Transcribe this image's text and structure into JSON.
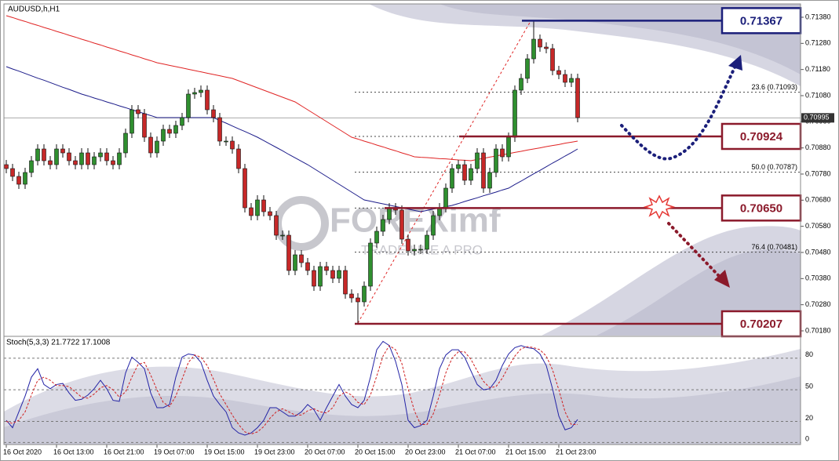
{
  "chart_data": [
    {
      "type": "candlestick",
      "title": "AUDUSD,h,H1",
      "categories": [
        "16 Oct 2020",
        null,
        null,
        null,
        null,
        null,
        null,
        null,
        "16 Oct 13:00",
        null,
        null,
        null,
        null,
        null,
        null,
        null,
        "16 Oct 21:00",
        null,
        null,
        null,
        null,
        null,
        null,
        null,
        "19 Oct 07:00",
        null,
        null,
        null,
        null,
        null,
        null,
        null,
        "19 Oct 15:00",
        null,
        null,
        null,
        null,
        null,
        null,
        null,
        "19 Oct 23:00",
        null,
        null,
        null,
        null,
        null,
        null,
        null,
        "20 Oct 07:00",
        null,
        null,
        null,
        null,
        null,
        null,
        null,
        "20 Oct 15:00",
        null,
        null,
        null,
        null,
        null,
        null,
        null,
        "20 Oct 23:00",
        null,
        null,
        null,
        null,
        null,
        null,
        null,
        "21 Oct 07:00",
        null,
        null,
        null,
        null,
        null,
        null,
        null,
        "21 Oct 15:00",
        null,
        null,
        null,
        null,
        null,
        null,
        null,
        "21 Oct 23:00",
        null,
        null,
        null
      ],
      "open": [
        0.70816,
        0.70801,
        0.70771,
        0.70741,
        0.70786,
        0.70831,
        0.70876,
        0.70831,
        0.70816,
        0.70876,
        0.70861,
        0.70831,
        0.70816,
        0.70861,
        0.70816,
        0.70846,
        0.70861,
        0.70831,
        0.70816,
        0.70861,
        0.70936,
        0.71026,
        0.71011,
        0.70921,
        0.70861,
        0.70906,
        0.70951,
        0.70936,
        0.70966,
        0.70996,
        0.71086,
        0.71092,
        0.71101,
        0.71026,
        0.70996,
        0.70906,
        0.70906,
        0.70876,
        0.70801,
        0.70651,
        0.70621,
        0.70681,
        0.70636,
        0.70621,
        0.70546,
        0.70546,
        0.70411,
        0.70471,
        0.70441,
        0.70411,
        0.70351,
        0.70426,
        0.70411,
        0.70381,
        0.70411,
        0.70321,
        0.70306,
        0.70291,
        0.70351,
        0.70516,
        0.70561,
        0.70606,
        0.70651,
        0.70642,
        0.70531,
        0.70486,
        0.70492,
        0.70492,
        0.70546,
        0.70621,
        0.70651,
        0.70726,
        0.70801,
        0.70816,
        0.70756,
        0.70801,
        0.70861,
        0.70726,
        0.70786,
        0.70876,
        0.70846,
        0.70921,
        0.71101,
        0.71146,
        0.71221,
        0.71296,
        0.71266,
        0.7126,
        0.71176,
        0.71161,
        0.71131,
        0.71146
      ],
      "high": [
        0.70834,
        0.70819,
        0.70789,
        0.70804,
        0.70849,
        0.70894,
        0.70894,
        0.70849,
        0.70894,
        0.70894,
        0.70879,
        0.70849,
        0.70879,
        0.70879,
        0.70864,
        0.70879,
        0.70879,
        0.70849,
        0.70879,
        0.70954,
        0.71044,
        0.71044,
        0.71029,
        0.70939,
        0.70924,
        0.70969,
        0.70969,
        0.70984,
        0.71014,
        0.71104,
        0.7111,
        0.71119,
        0.71119,
        0.71044,
        0.71014,
        0.70924,
        0.70924,
        0.70894,
        0.70819,
        0.70669,
        0.70699,
        0.70699,
        0.70654,
        0.70639,
        0.70564,
        0.70564,
        0.70489,
        0.70489,
        0.70459,
        0.70429,
        0.70444,
        0.70444,
        0.70429,
        0.70429,
        0.70429,
        0.70339,
        0.70324,
        0.70369,
        0.70534,
        0.70579,
        0.70624,
        0.70669,
        0.70669,
        0.7066,
        0.70549,
        0.7051,
        0.7051,
        0.70564,
        0.70639,
        0.70669,
        0.70744,
        0.70819,
        0.70834,
        0.70834,
        0.70819,
        0.70879,
        0.70879,
        0.70804,
        0.70894,
        0.70894,
        0.70939,
        0.71119,
        0.71164,
        0.71239,
        0.71367,
        0.71314,
        0.71284,
        0.71278,
        0.71194,
        0.71179,
        0.71164,
        0.71164
      ],
      "low": [
        0.70783,
        0.70753,
        0.70723,
        0.70723,
        0.70768,
        0.70813,
        0.70813,
        0.70798,
        0.70798,
        0.70843,
        0.70813,
        0.70798,
        0.70798,
        0.70798,
        0.70798,
        0.70828,
        0.70813,
        0.70798,
        0.70798,
        0.70843,
        0.70918,
        0.70993,
        0.70903,
        0.70843,
        0.70843,
        0.70888,
        0.70918,
        0.70918,
        0.70948,
        0.70978,
        0.71068,
        0.71074,
        0.71008,
        0.70978,
        0.70888,
        0.70888,
        0.70858,
        0.70783,
        0.70633,
        0.70603,
        0.70603,
        0.70618,
        0.70603,
        0.70528,
        0.70528,
        0.70393,
        0.70393,
        0.70423,
        0.70393,
        0.70333,
        0.70333,
        0.70393,
        0.70363,
        0.70363,
        0.70303,
        0.70288,
        0.70207,
        0.70273,
        0.70333,
        0.70498,
        0.70543,
        0.70588,
        0.70624,
        0.70513,
        0.70468,
        0.70468,
        0.70474,
        0.70474,
        0.70528,
        0.70603,
        0.70633,
        0.70708,
        0.70783,
        0.70738,
        0.70738,
        0.70783,
        0.70708,
        0.70708,
        0.70768,
        0.70828,
        0.70828,
        0.70903,
        0.71083,
        0.71128,
        0.71203,
        0.71248,
        0.71242,
        0.71158,
        0.71143,
        0.71113,
        0.71113,
        0.70978
      ],
      "close": [
        0.70801,
        0.70771,
        0.70741,
        0.70786,
        0.70831,
        0.70876,
        0.70831,
        0.70816,
        0.70876,
        0.70861,
        0.70831,
        0.70816,
        0.70861,
        0.70816,
        0.70846,
        0.70861,
        0.70831,
        0.70816,
        0.70861,
        0.70936,
        0.71026,
        0.71011,
        0.70921,
        0.70861,
        0.70906,
        0.70951,
        0.70936,
        0.70966,
        0.70996,
        0.71086,
        0.71092,
        0.71101,
        0.71026,
        0.70996,
        0.70906,
        0.70906,
        0.70876,
        0.70801,
        0.70651,
        0.70621,
        0.70681,
        0.70636,
        0.70621,
        0.70546,
        0.70546,
        0.70411,
        0.70471,
        0.70441,
        0.70411,
        0.70351,
        0.70426,
        0.70411,
        0.70381,
        0.70411,
        0.70321,
        0.70306,
        0.70291,
        0.70351,
        0.70516,
        0.70561,
        0.70606,
        0.70651,
        0.70642,
        0.70531,
        0.70486,
        0.70492,
        0.70492,
        0.70546,
        0.70621,
        0.70651,
        0.70726,
        0.70801,
        0.70816,
        0.70756,
        0.70801,
        0.70861,
        0.70726,
        0.70786,
        0.70876,
        0.70846,
        0.70921,
        0.71101,
        0.71146,
        0.71221,
        0.71296,
        0.71266,
        0.7126,
        0.71176,
        0.71161,
        0.71131,
        0.71146,
        0.70996
      ],
      "up_color": "#2f8f2f",
      "down_color": "#c62828",
      "series": [
        {
          "color": "#e02424",
          "values": [
            0.71386,
            0.71379,
            0.71371,
            0.71364,
            0.71356,
            0.71349,
            0.71341,
            0.71334,
            0.71326,
            0.71319,
            0.71311,
            0.71304,
            0.71296,
            0.71289,
            0.71281,
            0.71274,
            0.71266,
            0.71259,
            0.71251,
            0.71244,
            0.71236,
            0.71229,
            0.71221,
            0.71214,
            0.71206,
            0.71201,
            0.71196,
            0.71191,
            0.71186,
            0.71181,
            0.71176,
            0.71171,
            0.71166,
            0.71161,
            0.71156,
            0.71151,
            0.71146,
            0.71137,
            0.71128,
            0.71119,
            0.7111,
            0.71101,
            0.71092,
            0.71083,
            0.71074,
            0.71065,
            0.71056,
            0.71041,
            0.71026,
            0.71011,
            0.70996,
            0.70981,
            0.70966,
            0.70951,
            0.70936,
            0.70921,
            0.70914,
            0.70906,
            0.70899,
            0.70891,
            0.70884,
            0.70876,
            0.70869,
            0.70861,
            0.70854,
            0.70846,
            0.70844,
            0.70843,
            0.70841,
            0.70839,
            0.70838,
            0.70836,
            0.70834,
            0.70833,
            0.70831,
            0.70836,
            0.7084,
            0.70845,
            0.70849,
            0.70854,
            0.70858,
            0.70863,
            0.70867,
            0.70872,
            0.70876,
            0.7088,
            0.70885,
            0.70889,
            0.70893,
            0.70898,
            0.70902,
            0.70906
          ]
        },
        {
          "color": "#1c1c8a",
          "values": [
            0.71191,
            0.71182,
            0.71174,
            0.71165,
            0.71156,
            0.71147,
            0.71139,
            0.7113,
            0.71121,
            0.71112,
            0.71104,
            0.71095,
            0.71086,
            0.71079,
            0.71071,
            0.71064,
            0.71056,
            0.71049,
            0.71041,
            0.71034,
            0.71026,
            0.71019,
            0.71011,
            0.71004,
            0.70996,
            0.70996,
            0.70996,
            0.70996,
            0.70996,
            0.70996,
            0.70996,
            0.70996,
            0.70996,
            0.70996,
            0.70985,
            0.70975,
            0.70964,
            0.70953,
            0.70943,
            0.70932,
            0.70921,
            0.70908,
            0.70895,
            0.70882,
            0.70869,
            0.70855,
            0.70842,
            0.70829,
            0.70816,
            0.70801,
            0.70786,
            0.70771,
            0.70756,
            0.70741,
            0.70726,
            0.70711,
            0.70696,
            0.70681,
            0.70676,
            0.70671,
            0.70666,
            0.70661,
            0.70656,
            0.70651,
            0.70646,
            0.70641,
            0.70636,
            0.70641,
            0.70646,
            0.7065,
            0.70655,
            0.7066,
            0.70667,
            0.70675,
            0.70682,
            0.70689,
            0.70697,
            0.70704,
            0.70711,
            0.70719,
            0.70726,
            0.7074,
            0.70753,
            0.70767,
            0.70781,
            0.70794,
            0.70808,
            0.70822,
            0.70835,
            0.70849,
            0.70862,
            0.70876
          ]
        }
      ],
      "ylim": [
        0.70162,
        0.71431
      ],
      "yticks": [
        {
          "value": 0.7138,
          "label": "0.71380"
        },
        {
          "value": 0.7128,
          "label": "0.71280"
        },
        {
          "value": 0.7118,
          "label": "0.71180"
        },
        {
          "value": 0.7108,
          "label": "0.71080"
        },
        {
          "value": 0.7098,
          "label": "0.70980"
        },
        {
          "value": 0.7088,
          "label": "0.70880"
        },
        {
          "value": 0.7078,
          "label": "0.70780"
        },
        {
          "value": 0.7068,
          "label": "0.70680"
        },
        {
          "value": 0.7058,
          "label": "0.70580"
        },
        {
          "value": 0.7048,
          "label": "0.70480"
        },
        {
          "value": 0.7038,
          "label": "0.70380"
        },
        {
          "value": 0.7028,
          "label": "0.70280"
        },
        {
          "value": 0.7018,
          "label": "0.70180"
        }
      ],
      "levels": [
        {
          "value": 0.71367,
          "color": "#1b1f7a"
        },
        {
          "value": 0.70924,
          "color": "#8b1a2b"
        },
        {
          "value": 0.7065,
          "label": "0.70650",
          "color": "#8b1a2b"
        },
        {
          "value": 0.70207,
          "color": "#8b1a2b"
        }
      ],
      "fib_levels": [
        {
          "value": 0.71093,
          "label": "23.6 (0.71093)"
        },
        {
          "value": 0.70787,
          "label": "50.0 (0.70787)"
        },
        {
          "value": 0.70481,
          "label": "76.4 (0.70481)"
        }
      ],
      "current_price": 0.70995,
      "watermark": {
        "brand": "FOREXimf",
        "tagline": "TRADE LIKE A PRO"
      }
    },
    {
      "type": "line",
      "title": "Stoch(5,3,3) 21.7722 17.1008",
      "series": [
        {
          "color": "#2323a6",
          "values": [
            21,
            14,
            29,
            44,
            62,
            70,
            55,
            51,
            55,
            56,
            47,
            40,
            41,
            45,
            51,
            59,
            51,
            40,
            39,
            66,
            81,
            76,
            70,
            47,
            33,
            33,
            36,
            62,
            81,
            84,
            83,
            76,
            59,
            44,
            36,
            29,
            14,
            9,
            7,
            9,
            14,
            21,
            33,
            33,
            29,
            25,
            25,
            29,
            36,
            31,
            21,
            33,
            44,
            55,
            44,
            36,
            33,
            40,
            62,
            88,
            96,
            92,
            77,
            55,
            21,
            14,
            16,
            21,
            44,
            70,
            83,
            88,
            88,
            81,
            68,
            55,
            50,
            51,
            59,
            73,
            84,
            90,
            92,
            90,
            89,
            84,
            73,
            51,
            25,
            12,
            14,
            21.7722
          ]
        },
        {
          "color": "#d02020",
          "dashed": true,
          "values": [
            20,
            18,
            21,
            29,
            45,
            59,
            62,
            59,
            54,
            54,
            53,
            48,
            43,
            42,
            46,
            52,
            54,
            50,
            43,
            48,
            62,
            74,
            76,
            64,
            50,
            38,
            34,
            44,
            60,
            76,
            83,
            81,
            73,
            60,
            46,
            36,
            26,
            17,
            10,
            8,
            10,
            15,
            23,
            29,
            32,
            29,
            26,
            26,
            30,
            32,
            29,
            28,
            33,
            44,
            48,
            45,
            38,
            36,
            45,
            63,
            82,
            92,
            88,
            75,
            51,
            30,
            17,
            17,
            27,
            45,
            66,
            80,
            86,
            86,
            79,
            68,
            58,
            52,
            53,
            61,
            72,
            82,
            89,
            91,
            90,
            88,
            82,
            69,
            50,
            29,
            17,
            17.1008
          ]
        }
      ],
      "ylim": [
        -2,
        100
      ],
      "yticks": [
        80,
        50,
        20,
        0
      ]
    }
  ]
}
